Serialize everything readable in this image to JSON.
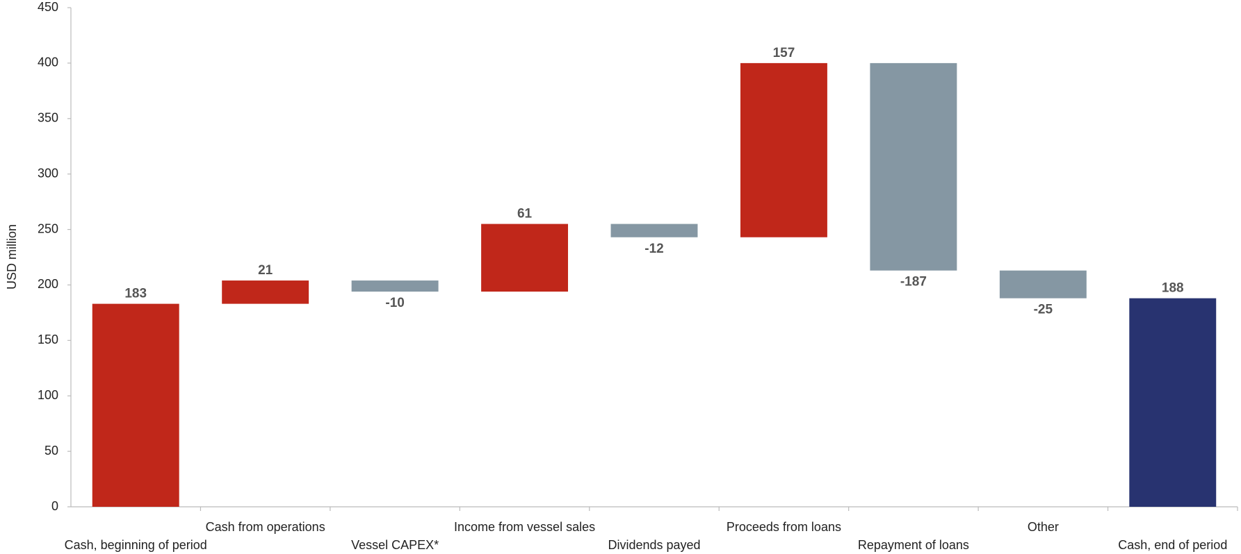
{
  "chart_data": {
    "type": "waterfall",
    "y_label": "USD million",
    "categories": [
      "Cash, beginning of period",
      "Cash from operations",
      "Vessel CAPEX*",
      "Income from vessel sales",
      "Dividends payed",
      "Proceeds from loans",
      "Repayment of loans",
      "Other",
      "Cash, end of period"
    ],
    "values": [
      183,
      21,
      -10,
      61,
      -12,
      157,
      -187,
      -25,
      188
    ],
    "measure": [
      "absolute",
      "relative",
      "relative",
      "relative",
      "relative",
      "relative",
      "relative",
      "relative",
      "total"
    ],
    "colors": [
      "#c0271a",
      "#c0271a",
      "#8597a3",
      "#c0271a",
      "#8597a3",
      "#c0271a",
      "#8597a3",
      "#8597a3",
      "#283370"
    ],
    "ylim": [
      0,
      450
    ],
    "yticks": [
      0,
      50,
      100,
      150,
      200,
      250,
      300,
      350,
      400,
      450
    ],
    "grid": false
  }
}
